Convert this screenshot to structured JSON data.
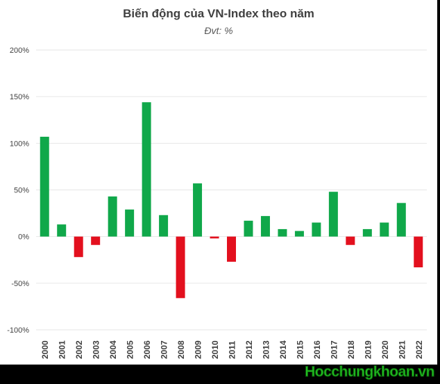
{
  "chart_data": {
    "type": "bar",
    "title": "Biến động của VN-Index theo năm",
    "subtitle": "Đvt: %",
    "xlabel": "",
    "ylabel": "",
    "ylim": [
      -100,
      200
    ],
    "yticks": [
      -100,
      -50,
      0,
      50,
      100,
      150,
      200
    ],
    "ytick_labels": [
      "-100%",
      "-50%",
      "0%",
      "50%",
      "100%",
      "150%",
      "200%"
    ],
    "grid": true,
    "categories": [
      "2000",
      "2001",
      "2002",
      "2003",
      "2004",
      "2005",
      "2006",
      "2007",
      "2008",
      "2009",
      "2010",
      "2011",
      "2012",
      "2013",
      "2014",
      "2015",
      "2016",
      "2017",
      "2018",
      "2019",
      "2020",
      "2021",
      "2022"
    ],
    "values": [
      107,
      13,
      -22,
      -9,
      43,
      29,
      144,
      23,
      -66,
      57,
      -2,
      -27,
      17,
      22,
      8,
      6,
      15,
      48,
      -9,
      8,
      15,
      36,
      -33
    ],
    "colors": {
      "positive": "#10a84a",
      "negative": "#e3101e",
      "grid": "#e6e6e6"
    }
  },
  "watermark": "Hocchungkhoan.vn"
}
